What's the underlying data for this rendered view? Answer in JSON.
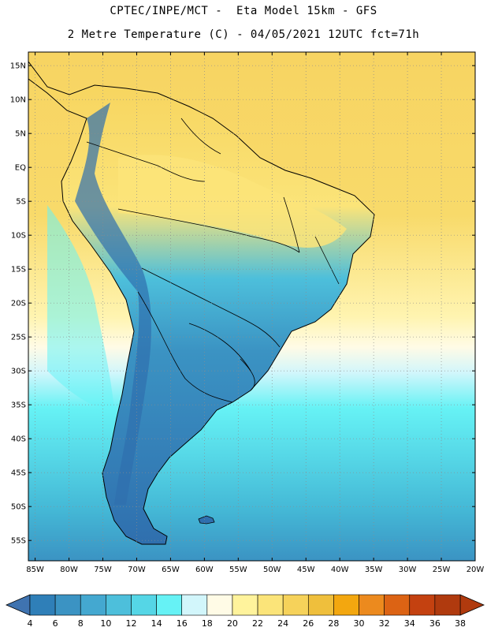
{
  "header": {
    "line1": "CPTEC/INPE/MCT -  Eta Model 15km - GFS",
    "line2": "2 Metre Temperature (C) - 04/05/2021 12UTC fct=71h"
  },
  "map": {
    "lon_range": [
      -86,
      -20
    ],
    "lat_range": [
      -58,
      17
    ],
    "lon_ticks": [
      -85,
      -80,
      -75,
      -70,
      -65,
      -60,
      -55,
      -50,
      -45,
      -40,
      -35,
      -30,
      -25,
      -20
    ],
    "lon_tick_labels": [
      "85W",
      "80W",
      "75W",
      "70W",
      "65W",
      "60W",
      "55W",
      "50W",
      "45W",
      "40W",
      "35W",
      "30W",
      "25W",
      "20W"
    ],
    "lat_ticks": [
      15,
      10,
      5,
      0,
      -5,
      -10,
      -15,
      -20,
      -25,
      -30,
      -35,
      -40,
      -45,
      -50,
      -55
    ],
    "lat_tick_labels": [
      "15N",
      "10N",
      "5N",
      "EQ",
      "5S",
      "10S",
      "15S",
      "20S",
      "25S",
      "30S",
      "35S",
      "40S",
      "45S",
      "50S",
      "55S"
    ]
  },
  "colorbar": {
    "labels": [
      "4",
      "6",
      "8",
      "10",
      "12",
      "14",
      "16",
      "18",
      "20",
      "22",
      "24",
      "26",
      "28",
      "30",
      "32",
      "34",
      "36",
      "38"
    ],
    "colors": [
      "#3a6ea8",
      "#2f7fb8",
      "#3b93c3",
      "#44a8d0",
      "#4dbfdb",
      "#55d6e6",
      "#66f2f5",
      "#d2f6fb",
      "#fffbe6",
      "#fff39c",
      "#fbe479",
      "#f6d25a",
      "#efbf3c",
      "#f3a70f",
      "#ec8a1e",
      "#dc6314",
      "#c44110",
      "#b03a0e"
    ],
    "under_color": "#3f73b0",
    "over_color": "#b03a0e"
  }
}
